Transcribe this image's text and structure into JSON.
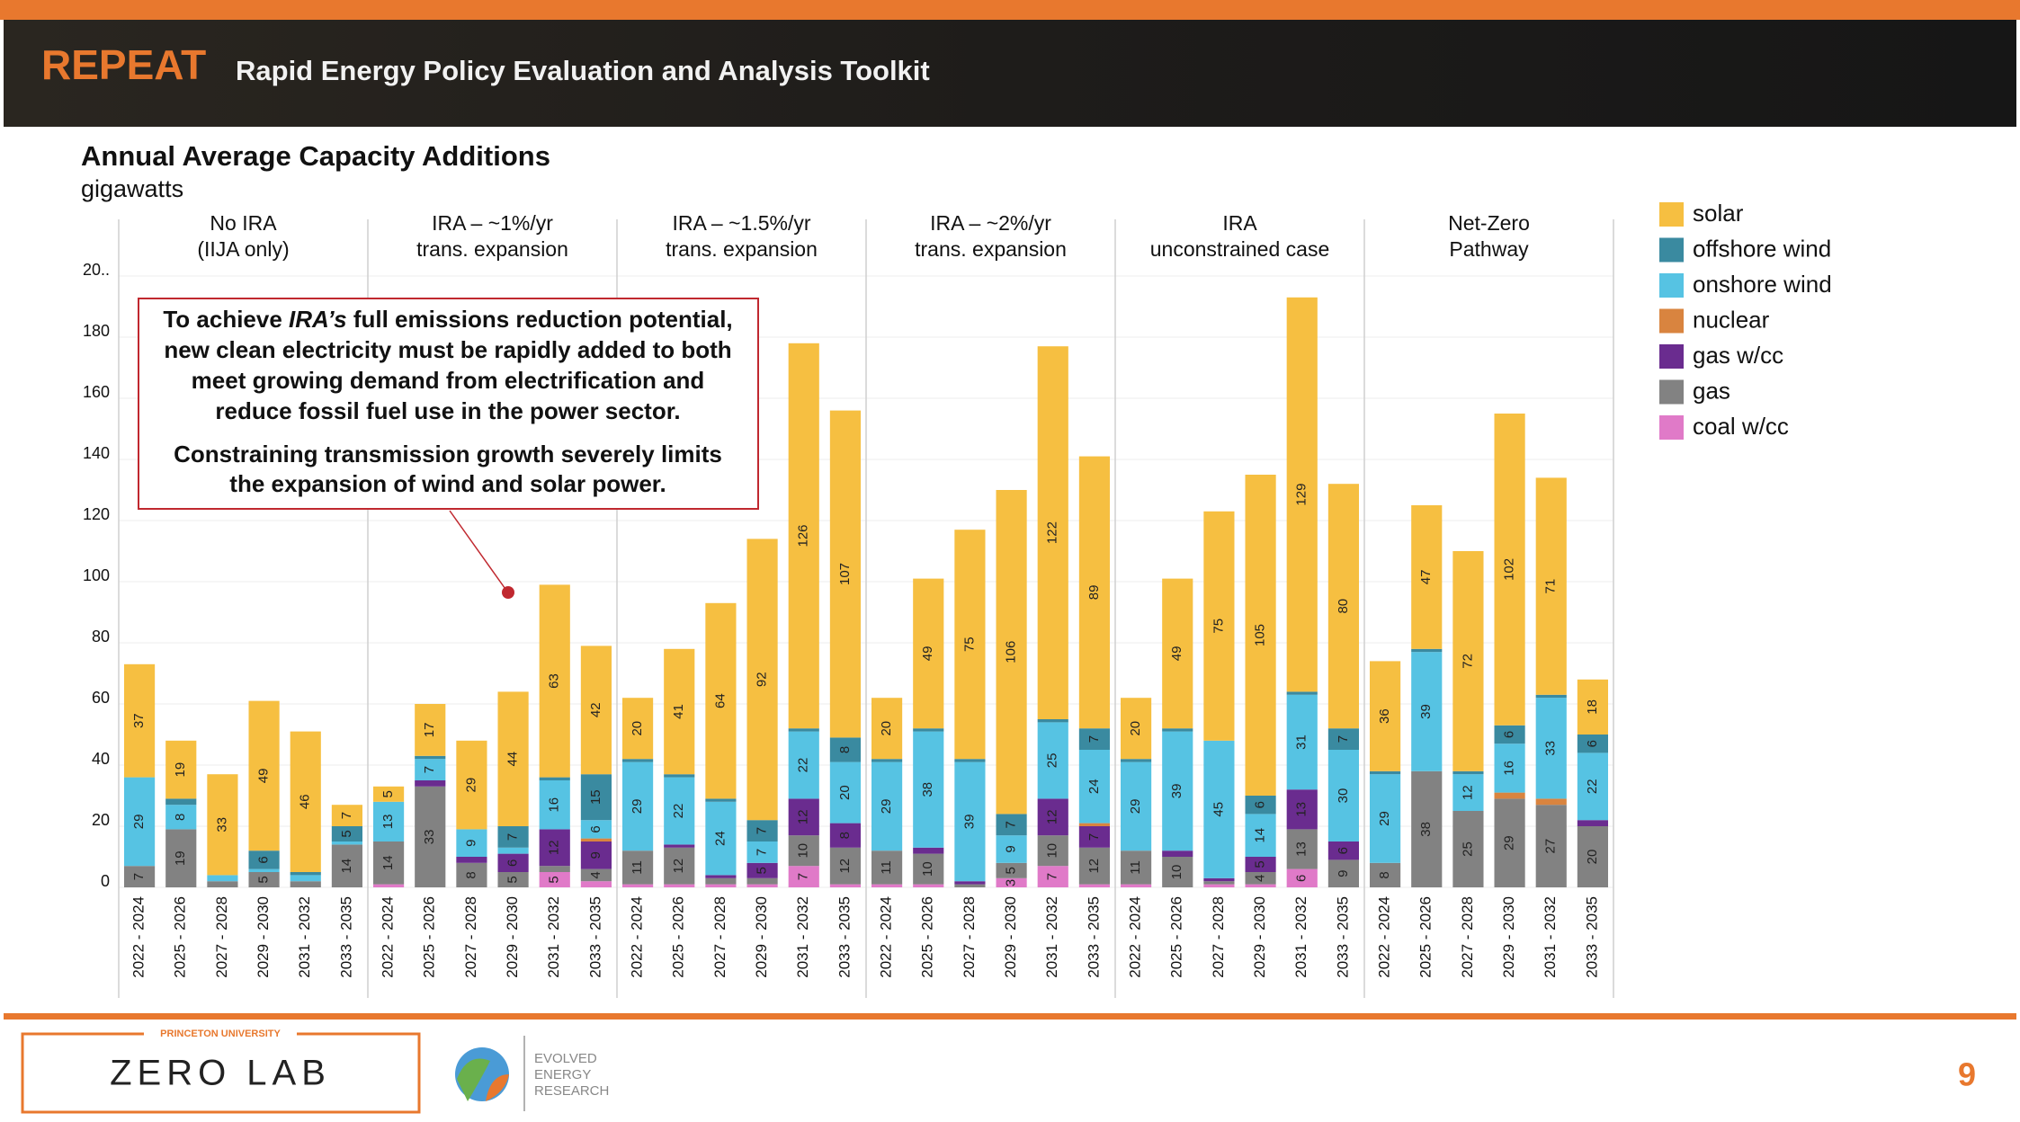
{
  "header": {
    "brand": "REPEAT",
    "subtitle": "Rapid Energy Policy Evaluation and Analysis Toolkit"
  },
  "chart_data": {
    "type": "stacked_bar",
    "title": "Annual Average Capacity Additions",
    "subtitle": "gigawatts",
    "groups": [
      [
        "No IRA",
        "(IIJA only)"
      ],
      [
        "IRA – ~1%/yr",
        "trans. expansion"
      ],
      [
        "IRA – ~1.5%/yr",
        "trans. expansion"
      ],
      [
        "IRA – ~2%/yr",
        "trans. expansion"
      ],
      [
        "IRA",
        "unconstrained case"
      ],
      [
        "Net-Zero",
        "Pathway"
      ]
    ],
    "categories": [
      "2022 - 2024",
      "2025 - 2026",
      "2027 - 2028",
      "2029 - 2030",
      "2031 - 2032",
      "2033 - 2035",
      "2022 - 2024",
      "2025 - 2026",
      "2027 - 2028",
      "2029 - 2030",
      "2031 - 2032",
      "2033 - 2035",
      "2022 - 2024",
      "2025 - 2026",
      "2027 - 2028",
      "2029 - 2030",
      "2031 - 2032",
      "2033 - 2035",
      "2022 - 2024",
      "2025 - 2026",
      "2027 - 2028",
      "2029 - 2030",
      "2031 - 2032",
      "2033 - 2035",
      "2022 - 2024",
      "2025 - 2026",
      "2027 - 2028",
      "2029 - 2030",
      "2031 - 2032",
      "2033 - 2035",
      "2022 - 2024",
      "2025 - 2026",
      "2027 - 2028",
      "2029 - 2030",
      "2031 - 2032",
      "2033 - 2035"
    ],
    "series": [
      {
        "name": "solar",
        "color": "#f6bf41",
        "values": [
          37,
          19,
          33,
          49,
          46,
          7,
          5,
          17,
          29,
          44,
          63,
          42,
          20,
          41,
          64,
          92,
          126,
          107,
          20,
          49,
          75,
          106,
          122,
          89,
          20,
          49,
          75,
          105,
          129,
          80,
          36,
          47,
          72,
          102,
          71,
          18
        ]
      },
      {
        "name": "offshore wind",
        "color": "#3a8aa0",
        "values": [
          0,
          2,
          0,
          6,
          1,
          5,
          0,
          1,
          0,
          7,
          1,
          15,
          1,
          1,
          1,
          7,
          1,
          8,
          1,
          1,
          1,
          7,
          1,
          7,
          1,
          1,
          0,
          6,
          1,
          7,
          1,
          1,
          1,
          6,
          1,
          6
        ]
      },
      {
        "name": "onshore wind",
        "color": "#56c3e3",
        "values": [
          29,
          8,
          2,
          1,
          2,
          1,
          13,
          7,
          9,
          2,
          16,
          6,
          29,
          22,
          24,
          7,
          22,
          20,
          29,
          38,
          39,
          9,
          25,
          24,
          29,
          39,
          45,
          14,
          31,
          30,
          29,
          39,
          12,
          16,
          33,
          22
        ]
      },
      {
        "name": "nuclear",
        "color": "#d9843f",
        "values": [
          0,
          0,
          0,
          0,
          0,
          0,
          0,
          0,
          0,
          0,
          0,
          1,
          0,
          0,
          0,
          0,
          0,
          0,
          0,
          0,
          0,
          0,
          0,
          1,
          0,
          0,
          0,
          0,
          0,
          0,
          0,
          0,
          0,
          2,
          2,
          0
        ]
      },
      {
        "name": "gas w/cc",
        "color": "#6a2c8f",
        "values": [
          0,
          0,
          0,
          0,
          0,
          0,
          0,
          2,
          2,
          6,
          12,
          9,
          0,
          1,
          1,
          5,
          12,
          8,
          0,
          2,
          1,
          0,
          12,
          7,
          0,
          2,
          1,
          5,
          13,
          6,
          0,
          0,
          0,
          0,
          0,
          2
        ]
      },
      {
        "name": "gas",
        "color": "#828282",
        "values": [
          7,
          19,
          2,
          5,
          2,
          14,
          14,
          33,
          8,
          5,
          2,
          4,
          11,
          12,
          2,
          2,
          10,
          12,
          11,
          10,
          1,
          5,
          10,
          12,
          11,
          10,
          1,
          4,
          13,
          9,
          8,
          38,
          25,
          29,
          27,
          20
        ]
      },
      {
        "name": "coal w/cc",
        "color": "#e07ac8",
        "values": [
          0,
          0,
          0,
          0,
          0,
          0,
          1,
          0,
          0,
          0,
          5,
          2,
          1,
          1,
          1,
          1,
          7,
          1,
          1,
          1,
          0,
          3,
          7,
          1,
          1,
          0,
          1,
          1,
          6,
          0,
          0,
          0,
          0,
          0,
          0,
          0
        ]
      }
    ],
    "ylim": [
      0,
      200
    ],
    "yticks": [
      0,
      20,
      40,
      60,
      80,
      100,
      120,
      140,
      160,
      180,
      {
        "value": 200,
        "label": "20.."
      }
    ],
    "grid": true,
    "annotation": {
      "lines": [
        [
          "To achieve ",
          "IRA’s",
          " full emissions reduction potential,"
        ],
        [
          "new clean electricity must be rapidly added to both"
        ],
        [
          "meet growing demand from electrification and"
        ],
        [
          "reduce fossil fuel use in the power sector."
        ],
        [
          "Constraining transmission growth severely limits"
        ],
        [
          "the expansion of wind and solar power."
        ]
      ]
    }
  },
  "footer": {
    "university": "PRINCETON UNIVERSITY",
    "lab": "ZERO LAB",
    "partner": [
      "EVOLVED",
      "ENERGY",
      "RESEARCH"
    ],
    "page": "9"
  }
}
